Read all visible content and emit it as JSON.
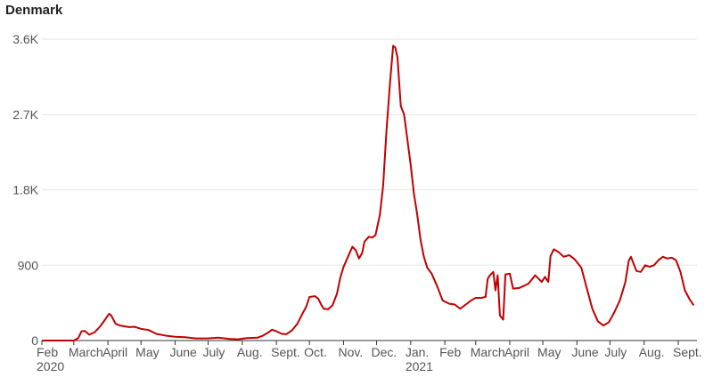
{
  "chart_data": {
    "type": "line",
    "title": "Denmark",
    "xlabel": "",
    "ylabel": "",
    "ylim": [
      0,
      3600
    ],
    "grid": "horizontal",
    "line_color": "#c00000",
    "y_ticks": [
      {
        "value": 0,
        "label": "0"
      },
      {
        "value": 900,
        "label": "900"
      },
      {
        "value": 1800,
        "label": "1.8K"
      },
      {
        "value": 2700,
        "label": "2.7K"
      },
      {
        "value": 3600,
        "label": "3.6K"
      }
    ],
    "x_ticks": [
      {
        "date": "2020-02-01",
        "label": "Feb",
        "sublabel": "2020"
      },
      {
        "date": "2020-03-01",
        "label": "March"
      },
      {
        "date": "2020-04-01",
        "label": "April"
      },
      {
        "date": "2020-05-01",
        "label": "May"
      },
      {
        "date": "2020-06-01",
        "label": "June"
      },
      {
        "date": "2020-07-01",
        "label": "July"
      },
      {
        "date": "2020-08-01",
        "label": "Aug."
      },
      {
        "date": "2020-09-01",
        "label": "Sept."
      },
      {
        "date": "2020-10-01",
        "label": "Oct."
      },
      {
        "date": "2020-11-01",
        "label": "Nov."
      },
      {
        "date": "2020-12-01",
        "label": "Dec."
      },
      {
        "date": "2021-01-01",
        "label": "Jan.",
        "sublabel": "2021"
      },
      {
        "date": "2021-02-01",
        "label": "Feb"
      },
      {
        "date": "2021-03-01",
        "label": "March"
      },
      {
        "date": "2021-04-01",
        "label": "April"
      },
      {
        "date": "2021-05-01",
        "label": "May"
      },
      {
        "date": "2021-06-01",
        "label": "June"
      },
      {
        "date": "2021-07-01",
        "label": "July"
      },
      {
        "date": "2021-08-01",
        "label": "Aug."
      },
      {
        "date": "2021-09-01",
        "label": "Sept."
      }
    ],
    "series": [
      {
        "points": [
          [
            "2020-02-01",
            0
          ],
          [
            "2020-02-20",
            0
          ],
          [
            "2020-03-01",
            0
          ],
          [
            "2020-03-05",
            30
          ],
          [
            "2020-03-08",
            110
          ],
          [
            "2020-03-11",
            115
          ],
          [
            "2020-03-15",
            70
          ],
          [
            "2020-03-20",
            100
          ],
          [
            "2020-03-25",
            170
          ],
          [
            "2020-03-30",
            260
          ],
          [
            "2020-04-02",
            320
          ],
          [
            "2020-04-04",
            300
          ],
          [
            "2020-04-08",
            200
          ],
          [
            "2020-04-12",
            180
          ],
          [
            "2020-04-20",
            160
          ],
          [
            "2020-04-25",
            165
          ],
          [
            "2020-05-01",
            140
          ],
          [
            "2020-05-08",
            125
          ],
          [
            "2020-05-15",
            80
          ],
          [
            "2020-05-25",
            55
          ],
          [
            "2020-06-01",
            45
          ],
          [
            "2020-06-10",
            40
          ],
          [
            "2020-06-20",
            25
          ],
          [
            "2020-06-30",
            25
          ],
          [
            "2020-07-05",
            30
          ],
          [
            "2020-07-10",
            35
          ],
          [
            "2020-07-20",
            20
          ],
          [
            "2020-07-28",
            15
          ],
          [
            "2020-08-05",
            30
          ],
          [
            "2020-08-15",
            35
          ],
          [
            "2020-08-20",
            60
          ],
          [
            "2020-08-25",
            100
          ],
          [
            "2020-08-28",
            130
          ],
          [
            "2020-09-01",
            110
          ],
          [
            "2020-09-06",
            80
          ],
          [
            "2020-09-10",
            75
          ],
          [
            "2020-09-15",
            120
          ],
          [
            "2020-09-20",
            200
          ],
          [
            "2020-09-25",
            330
          ],
          [
            "2020-09-28",
            400
          ],
          [
            "2020-10-01",
            520
          ],
          [
            "2020-10-06",
            530
          ],
          [
            "2020-10-09",
            500
          ],
          [
            "2020-10-12",
            420
          ],
          [
            "2020-10-14",
            380
          ],
          [
            "2020-10-18",
            375
          ],
          [
            "2020-10-22",
            420
          ],
          [
            "2020-10-26",
            560
          ],
          [
            "2020-10-29",
            750
          ],
          [
            "2020-11-01",
            880
          ],
          [
            "2020-11-05",
            1000
          ],
          [
            "2020-11-09",
            1120
          ],
          [
            "2020-11-12",
            1080
          ],
          [
            "2020-11-15",
            980
          ],
          [
            "2020-11-18",
            1050
          ],
          [
            "2020-11-20",
            1180
          ],
          [
            "2020-11-24",
            1240
          ],
          [
            "2020-11-27",
            1230
          ],
          [
            "2020-11-30",
            1260
          ],
          [
            "2020-12-04",
            1500
          ],
          [
            "2020-12-07",
            1850
          ],
          [
            "2020-12-10",
            2500
          ],
          [
            "2020-12-13",
            3050
          ],
          [
            "2020-12-16",
            3520
          ],
          [
            "2020-12-18",
            3500
          ],
          [
            "2020-12-20",
            3380
          ],
          [
            "2020-12-23",
            2800
          ],
          [
            "2020-12-26",
            2700
          ],
          [
            "2020-12-29",
            2400
          ],
          [
            "2021-01-01",
            2100
          ],
          [
            "2021-01-04",
            1750
          ],
          [
            "2021-01-07",
            1500
          ],
          [
            "2021-01-10",
            1200
          ],
          [
            "2021-01-13",
            1000
          ],
          [
            "2021-01-16",
            870
          ],
          [
            "2021-01-20",
            800
          ],
          [
            "2021-01-25",
            650
          ],
          [
            "2021-01-30",
            480
          ],
          [
            "2021-02-05",
            440
          ],
          [
            "2021-02-10",
            430
          ],
          [
            "2021-02-15",
            380
          ],
          [
            "2021-02-20",
            430
          ],
          [
            "2021-02-25",
            480
          ],
          [
            "2021-03-01",
            510
          ],
          [
            "2021-03-06",
            510
          ],
          [
            "2021-03-10",
            520
          ],
          [
            "2021-03-12",
            740
          ],
          [
            "2021-03-14",
            780
          ],
          [
            "2021-03-17",
            820
          ],
          [
            "2021-03-19",
            600
          ],
          [
            "2021-03-21",
            780
          ],
          [
            "2021-03-23",
            300
          ],
          [
            "2021-03-26",
            250
          ],
          [
            "2021-03-28",
            790
          ],
          [
            "2021-04-01",
            800
          ],
          [
            "2021-04-04",
            620
          ],
          [
            "2021-04-10",
            630
          ],
          [
            "2021-04-18",
            680
          ],
          [
            "2021-04-24",
            780
          ],
          [
            "2021-04-30",
            700
          ],
          [
            "2021-05-03",
            760
          ],
          [
            "2021-05-06",
            700
          ],
          [
            "2021-05-08",
            1010
          ],
          [
            "2021-05-11",
            1090
          ],
          [
            "2021-05-15",
            1060
          ],
          [
            "2021-05-20",
            1000
          ],
          [
            "2021-05-25",
            1020
          ],
          [
            "2021-05-30",
            970
          ],
          [
            "2021-06-05",
            870
          ],
          [
            "2021-06-10",
            620
          ],
          [
            "2021-06-15",
            380
          ],
          [
            "2021-06-20",
            230
          ],
          [
            "2021-06-25",
            180
          ],
          [
            "2021-06-30",
            220
          ],
          [
            "2021-07-05",
            340
          ],
          [
            "2021-07-10",
            480
          ],
          [
            "2021-07-15",
            700
          ],
          [
            "2021-07-18",
            950
          ],
          [
            "2021-07-20",
            1000
          ],
          [
            "2021-07-25",
            830
          ],
          [
            "2021-07-29",
            820
          ],
          [
            "2021-08-02",
            900
          ],
          [
            "2021-08-06",
            880
          ],
          [
            "2021-08-10",
            900
          ],
          [
            "2021-08-14",
            960
          ],
          [
            "2021-08-18",
            1000
          ],
          [
            "2021-08-22",
            980
          ],
          [
            "2021-08-26",
            990
          ],
          [
            "2021-08-30",
            960
          ],
          [
            "2021-09-03",
            820
          ],
          [
            "2021-09-07",
            600
          ],
          [
            "2021-09-11",
            500
          ],
          [
            "2021-09-15",
            420
          ]
        ]
      }
    ]
  }
}
